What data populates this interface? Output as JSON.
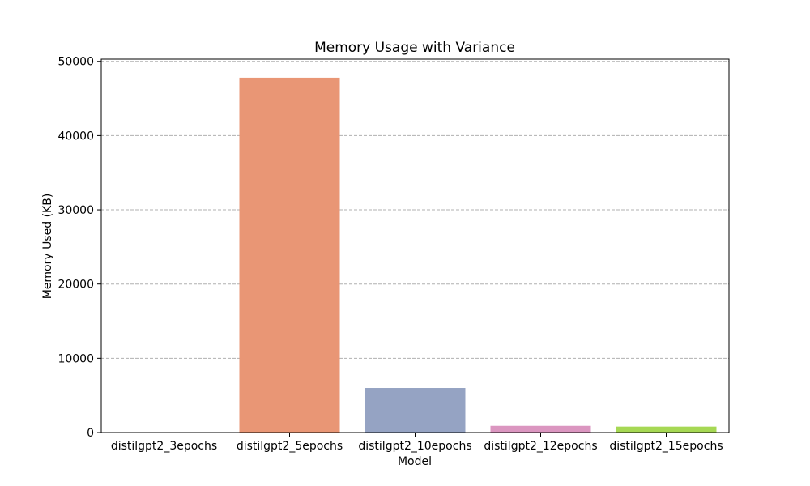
{
  "chart_data": {
    "type": "bar",
    "title": "Memory Usage with Variance",
    "xlabel": "Model",
    "ylabel": "Memory Used (KB)",
    "categories": [
      "distilgpt2_3epochs",
      "distilgpt2_5epochs",
      "distilgpt2_10epochs",
      "distilgpt2_12epochs",
      "distilgpt2_15epochs"
    ],
    "values": [
      0,
      47800,
      6000,
      900,
      800
    ],
    "colors": [
      "#66c2a5",
      "#e99675",
      "#95a3c3",
      "#db96c0",
      "#a6d854"
    ],
    "ylim": [
      0,
      50300
    ],
    "yticks": [
      0,
      10000,
      20000,
      30000,
      40000,
      50000
    ],
    "grid": true,
    "grid_axis": "y"
  }
}
